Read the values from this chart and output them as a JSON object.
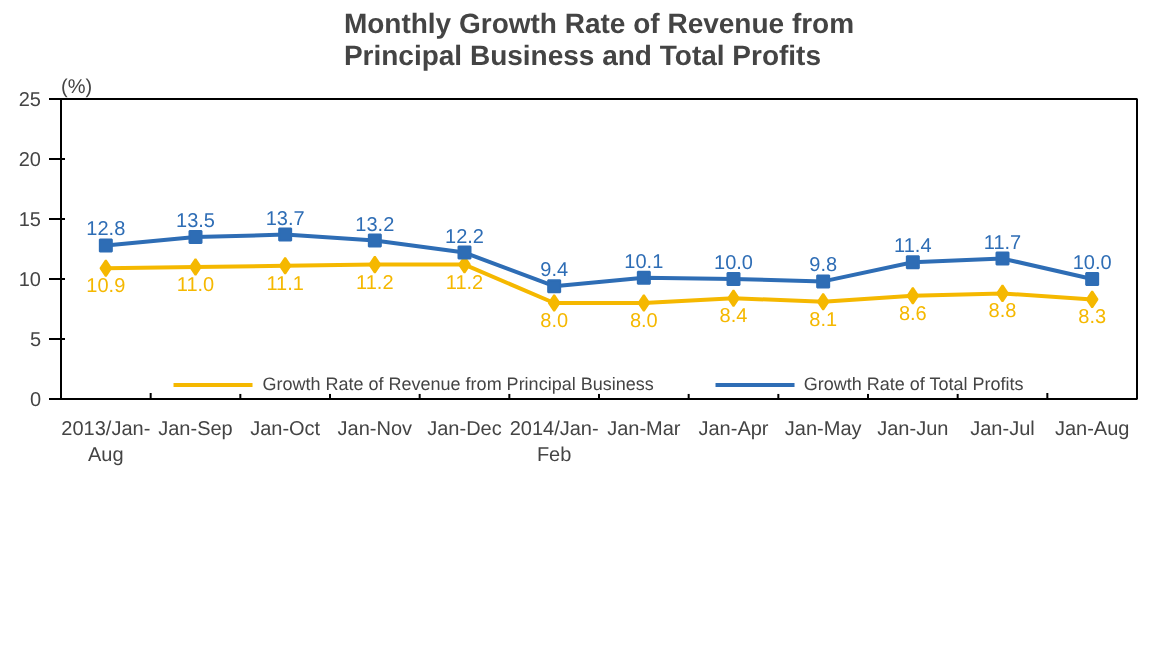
{
  "chart_data": {
    "type": "line",
    "title": "Monthly Growth Rate of Revenue from\nPrincipal Business and Total Profits",
    "ylabel": "(%)",
    "categories": [
      "2013/Jan-\nAug",
      "Jan-Sep",
      "Jan-Oct",
      "Jan-Nov",
      "Jan-Dec",
      "2014/Jan-\nFeb",
      "Jan-Mar",
      "Jan-Apr",
      "Jan-May",
      "Jan-Jun",
      "Jan-Jul",
      "Jan-Aug"
    ],
    "series": [
      {
        "name": "Growth Rate of Revenue from Principal Business",
        "color": "#f5b800",
        "marker": "diamond",
        "values": [
          10.9,
          11.0,
          11.1,
          11.2,
          11.2,
          8.0,
          8.0,
          8.4,
          8.1,
          8.6,
          8.8,
          8.3
        ],
        "value_labels": [
          "10.9",
          "11.0",
          "11.1",
          "11.2",
          "11.2",
          "8.0",
          "8.0",
          "8.4",
          "8.1",
          "8.6",
          "8.8",
          "8.3"
        ]
      },
      {
        "name": "Growth Rate of Total Profits",
        "color": "#2e6db5",
        "marker": "square",
        "values": [
          12.8,
          13.5,
          13.7,
          13.2,
          12.2,
          9.4,
          10.1,
          10.0,
          9.8,
          11.4,
          11.7,
          10.0
        ],
        "value_labels": [
          "12.8",
          "13.5",
          "13.7",
          "13.2",
          "12.2",
          "9.4",
          "10.1",
          "10.0",
          "9.8",
          "11.4",
          "11.7",
          "10.0"
        ]
      }
    ],
    "ylim": [
      0,
      25
    ],
    "yticks": [
      0,
      5,
      10,
      15,
      20,
      25
    ],
    "legend": "bottom"
  }
}
